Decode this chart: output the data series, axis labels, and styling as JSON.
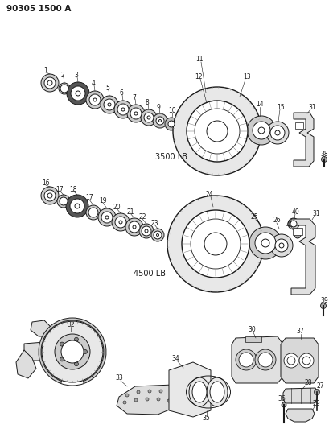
{
  "title": "90305 1500 A",
  "bg_color": "#ffffff",
  "line_color": "#1a1a1a",
  "label_3500": "3500 LB.",
  "label_4500": "4500 LB.",
  "fig_w": 4.1,
  "fig_h": 5.33,
  "dpi": 100
}
